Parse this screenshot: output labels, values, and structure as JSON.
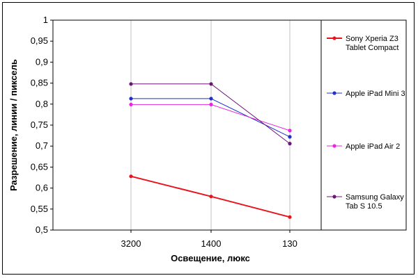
{
  "chart_data": {
    "type": "line",
    "title": "",
    "xlabel": "Освещение, люкс",
    "ylabel": "Разрешение, линии / пиксель",
    "categories": [
      "3200",
      "1400",
      "130"
    ],
    "ylim": [
      0.5,
      1
    ],
    "yticks": [
      "0,5",
      "0,55",
      "0,6",
      "0,65",
      "0,7",
      "0,75",
      "0,8",
      "0,85",
      "0,9",
      "0,95",
      "1"
    ],
    "ytick_values": [
      0.5,
      0.55,
      0.6,
      0.65,
      0.7,
      0.75,
      0.8,
      0.85,
      0.9,
      0.95,
      1.0
    ],
    "grid": "vertical",
    "legend": "right",
    "series": [
      {
        "name": "Sony Xperia Z3 Tablet Compact",
        "legend_lines": [
          "Sony Xperia Z3",
          "Tablet Compact"
        ],
        "values": [
          0.628,
          0.58,
          0.531
        ],
        "color": "#e8141e"
      },
      {
        "name": "Apple iPad Mini 3",
        "legend_lines": [
          "Apple iPad Mini 3"
        ],
        "values": [
          0.813,
          0.813,
          0.722
        ],
        "color": "#1f2fd0"
      },
      {
        "name": "Apple iPad Air 2",
        "legend_lines": [
          "Apple iPad Air 2"
        ],
        "values": [
          0.799,
          0.799,
          0.737
        ],
        "color": "#e627e0"
      },
      {
        "name": "Samsung Galaxy Tab S 10.5",
        "legend_lines": [
          "Samsung Galaxy",
          "Tab S 10.5"
        ],
        "values": [
          0.848,
          0.848,
          0.706
        ],
        "color": "#6b1574"
      }
    ]
  }
}
